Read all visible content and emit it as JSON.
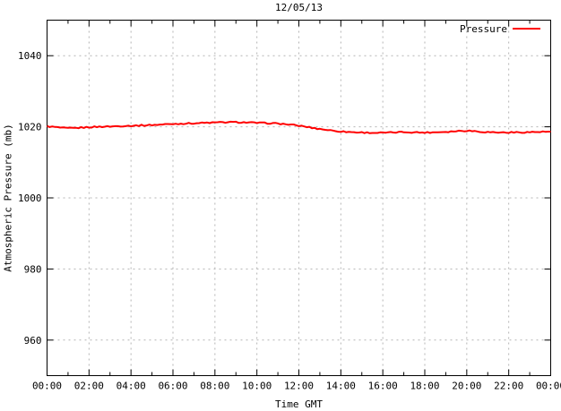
{
  "chart_data": {
    "type": "line",
    "title": "12/05/13",
    "xlabel": "Time GMT",
    "ylabel": "Atmospheric Pressure (mb)",
    "legend_position": "top-right-inside",
    "grid": true,
    "xlim": [
      0,
      24
    ],
    "ylim": [
      950,
      1050
    ],
    "x_major_tick_step_hours": 2,
    "x_minor_tick_step_hours": 1,
    "x_tick_labels": [
      "00:00",
      "02:00",
      "04:00",
      "06:00",
      "08:00",
      "10:00",
      "12:00",
      "14:00",
      "16:00",
      "18:00",
      "20:00",
      "22:00",
      "00:00"
    ],
    "y_ticks": [
      960,
      980,
      1000,
      1020,
      1040
    ],
    "x_hours": [
      0,
      1,
      2,
      3,
      4,
      5,
      6,
      7,
      8,
      9,
      10,
      11,
      12,
      13,
      14,
      15,
      16,
      17,
      18,
      19,
      20,
      21,
      22,
      23,
      24
    ],
    "series": [
      {
        "name": "Pressure",
        "color": "#ff0000",
        "values": [
          1020.1,
          1019.6,
          1019.9,
          1020.1,
          1020.3,
          1020.5,
          1020.8,
          1021.0,
          1021.2,
          1021.3,
          1021.1,
          1020.9,
          1020.3,
          1019.4,
          1018.7,
          1018.4,
          1018.3,
          1018.5,
          1018.4,
          1018.6,
          1018.9,
          1018.5,
          1018.4,
          1018.5,
          1018.6
        ]
      }
    ],
    "line_noise_mb": 0.18,
    "colors": {
      "background": "#ffffff",
      "border": "#000000",
      "grid": "#b4b4b4",
      "text": "#000000",
      "series": "#ff0000"
    }
  }
}
